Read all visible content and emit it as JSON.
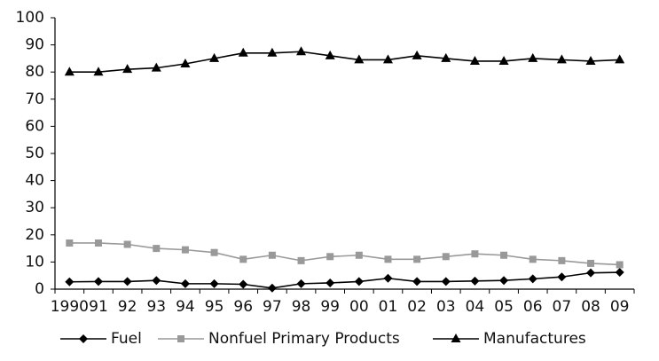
{
  "chart_data": {
    "type": "line",
    "categories": [
      "1990",
      "91",
      "92",
      "93",
      "94",
      "95",
      "96",
      "97",
      "98",
      "99",
      "00",
      "01",
      "02",
      "03",
      "04",
      "05",
      "06",
      "07",
      "08",
      "09"
    ],
    "ylim": [
      0,
      100
    ],
    "yticks": [
      0,
      10,
      20,
      30,
      40,
      50,
      60,
      70,
      80,
      90,
      100
    ],
    "grid": false,
    "legend": "bottom",
    "series": [
      {
        "name": "Fuel",
        "color": "#000000",
        "marker": "diamond",
        "values": [
          2.7,
          2.8,
          2.8,
          3.2,
          2,
          2,
          1.8,
          0.4,
          2,
          2.3,
          2.8,
          4,
          2.8,
          2.8,
          3,
          3.2,
          3.8,
          4.5,
          6,
          6.2
        ]
      },
      {
        "name": "Nonfuel Primary Products",
        "color": "#999999",
        "marker": "square",
        "values": [
          17,
          17,
          16.5,
          15,
          14.5,
          13.5,
          11,
          12.5,
          10.5,
          12,
          12.5,
          11,
          11,
          12,
          13,
          12.5,
          11,
          10.5,
          9.5,
          9
        ]
      },
      {
        "name": "Manufactures",
        "color": "#000000",
        "marker": "triangle",
        "values": [
          80,
          80,
          81,
          81.5,
          83,
          85,
          87,
          87,
          87.5,
          86,
          84.5,
          84.5,
          86,
          85,
          84,
          84,
          85,
          84.5,
          84,
          84.5
        ]
      }
    ]
  }
}
